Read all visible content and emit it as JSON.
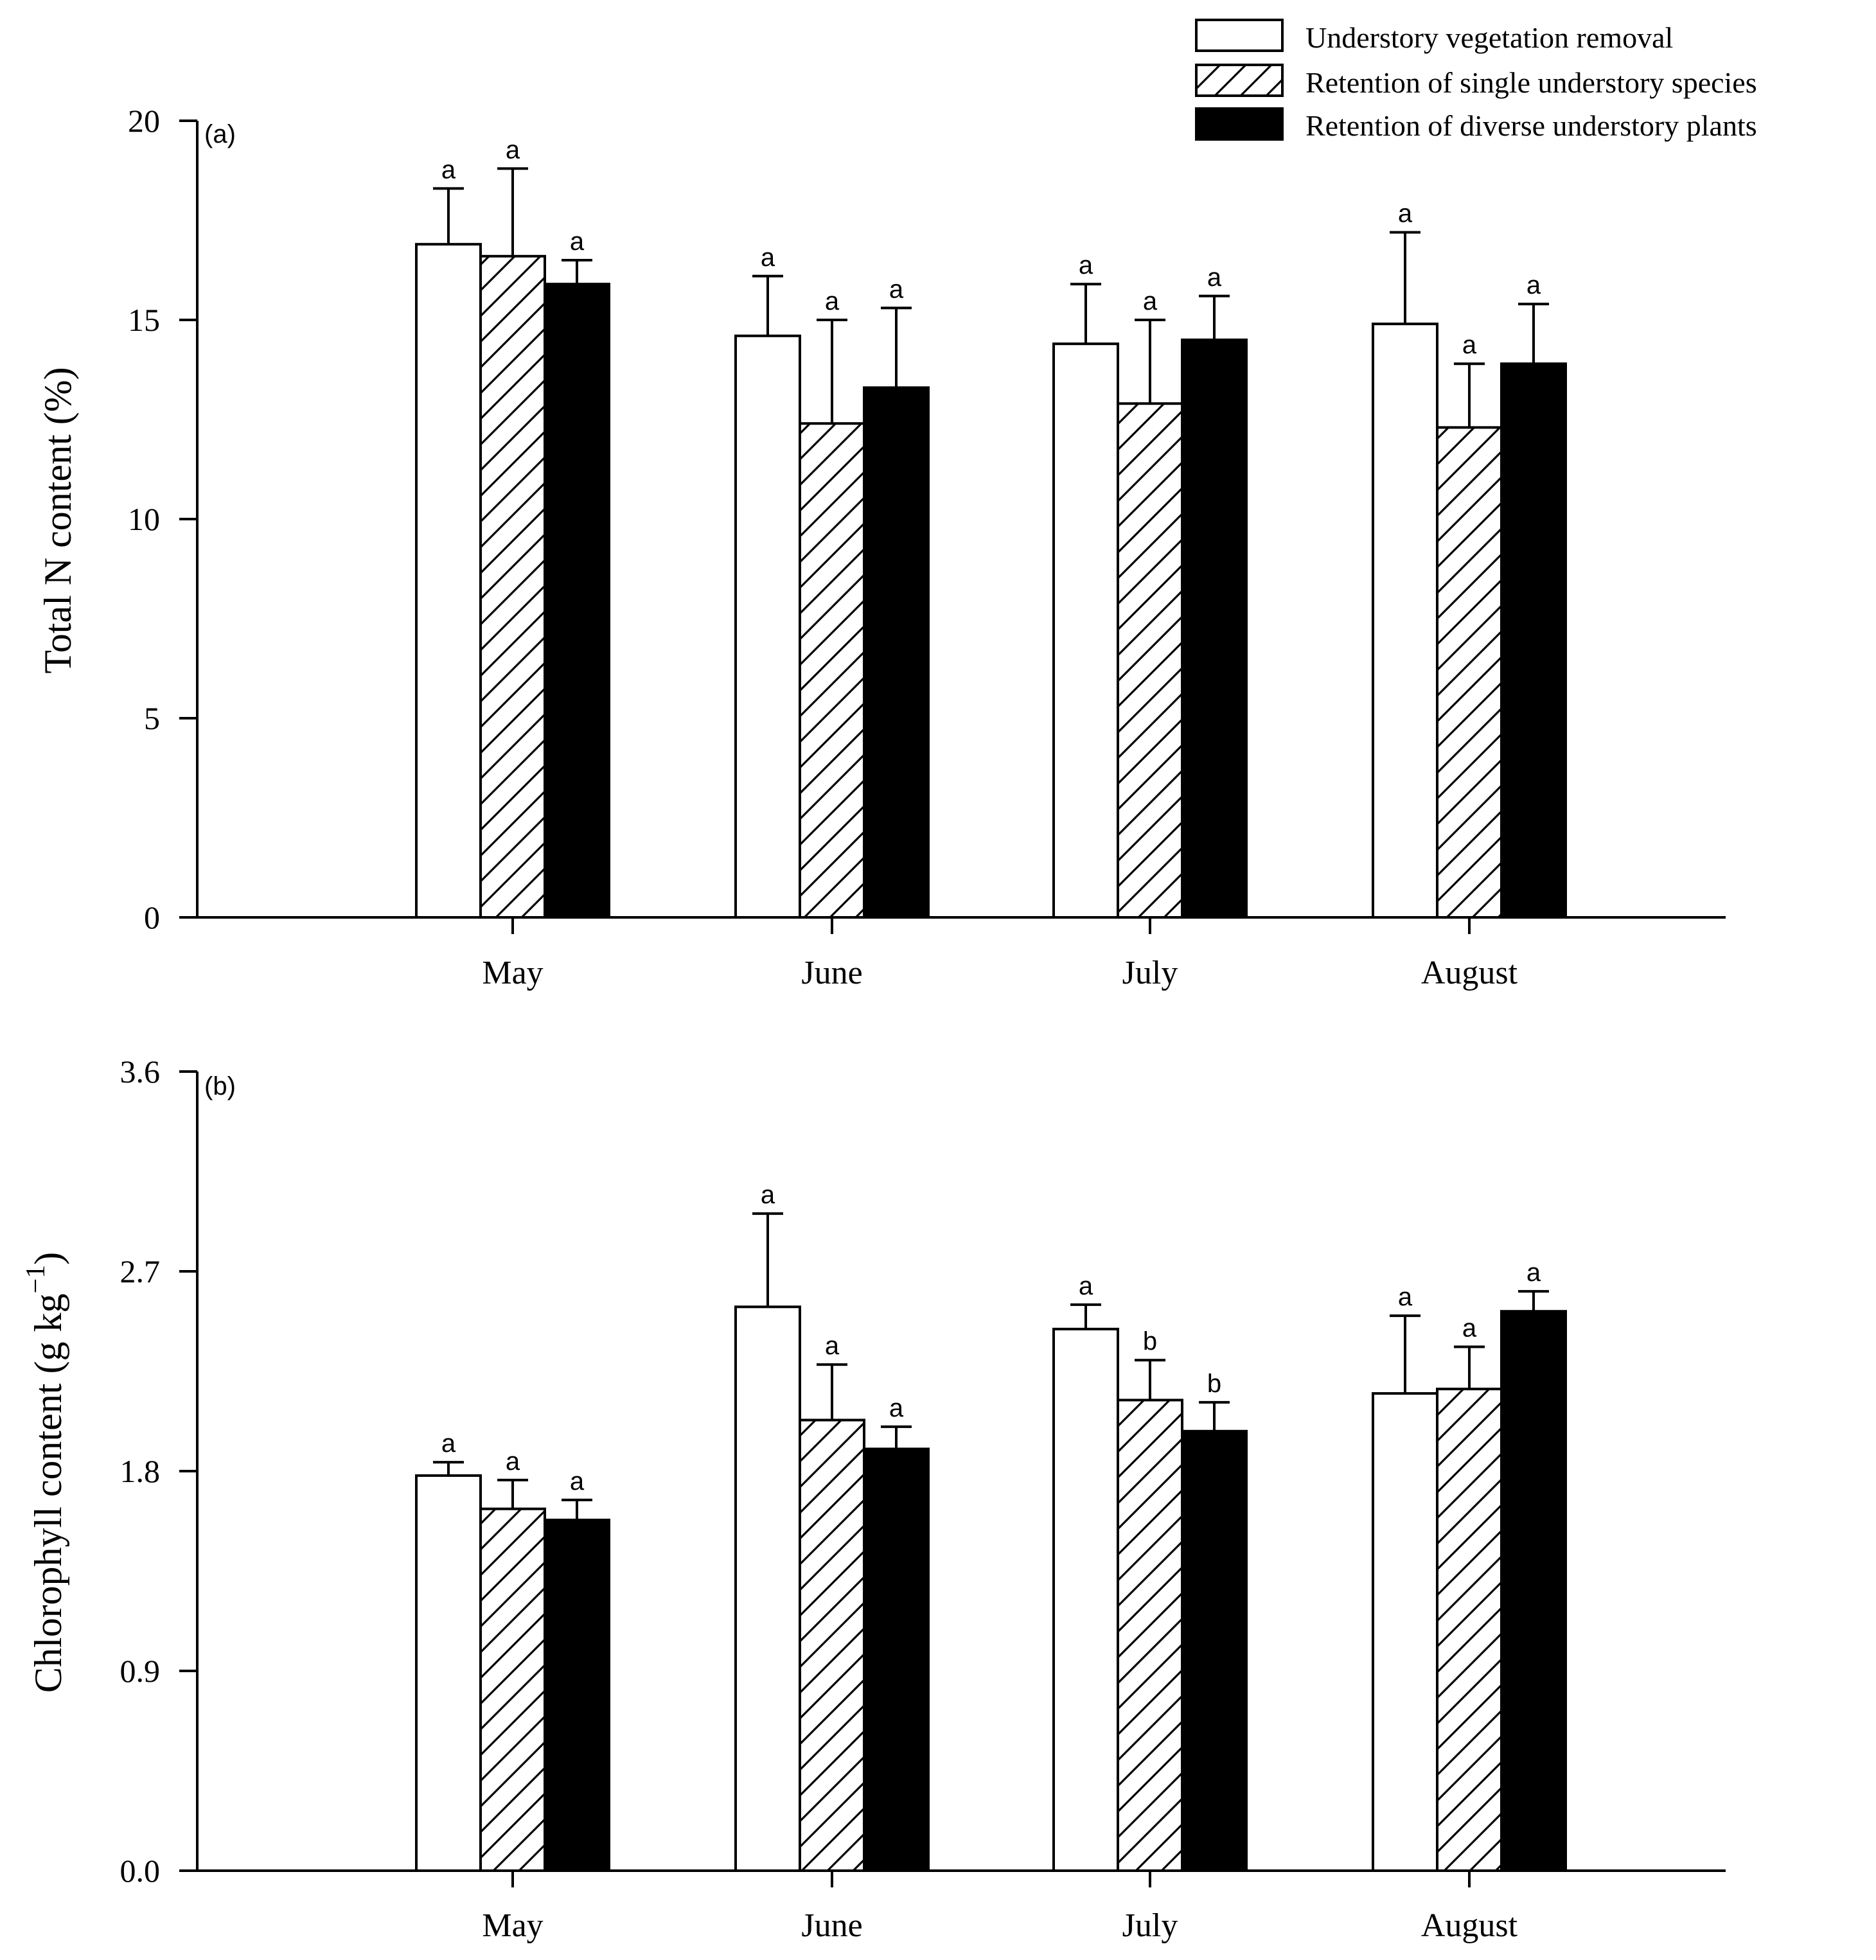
{
  "colors": {
    "stroke": "#000000",
    "white_fill": "#ffffff",
    "black_fill": "#000000"
  },
  "legend": {
    "placement": "top-right",
    "entries": [
      {
        "label": "Understory vegetation removal",
        "pattern": "open"
      },
      {
        "label": "Retention of single understory species",
        "pattern": "hatched"
      },
      {
        "label": "Retention of diverse understory plants",
        "pattern": "solid"
      }
    ]
  },
  "chart_data": [
    {
      "type": "bar",
      "panel": "(a)",
      "ylabel": "Total N content (%)",
      "ylim": [
        0,
        20
      ],
      "yticks": [
        "0",
        "5",
        "10",
        "15",
        "20"
      ],
      "categories": [
        "May",
        "June",
        "July",
        "August"
      ],
      "series": [
        {
          "name": "Understory vegetation removal",
          "pattern": "open",
          "values": [
            16.9,
            14.6,
            14.4,
            14.9
          ],
          "errors": [
            1.4,
            1.5,
            1.5,
            2.3
          ],
          "letters": [
            "a",
            "a",
            "a",
            "a"
          ]
        },
        {
          "name": "Retention of single understory species",
          "pattern": "hatched",
          "values": [
            16.6,
            12.4,
            12.9,
            12.3
          ],
          "errors": [
            2.2,
            2.6,
            2.1,
            1.6
          ],
          "letters": [
            "a",
            "a",
            "a",
            "a"
          ]
        },
        {
          "name": "Retention of diverse understory plants",
          "pattern": "solid",
          "values": [
            15.9,
            13.3,
            14.5,
            13.9
          ],
          "errors": [
            0.6,
            2.0,
            1.1,
            1.5
          ],
          "letters": [
            "a",
            "a",
            "a",
            "a"
          ]
        }
      ]
    },
    {
      "type": "bar",
      "panel": "(b)",
      "ylabel": "Chlorophyll content (g kg",
      "ylabel_superscript": "−1",
      "ylabel_close": ")",
      "ylim": [
        0,
        3.6
      ],
      "yticks": [
        "0.0",
        "0.9",
        "1.8",
        "2.7",
        "3.6"
      ],
      "categories": [
        "May",
        "June",
        "July",
        "August"
      ],
      "series": [
        {
          "name": "Understory vegetation removal",
          "pattern": "open",
          "values": [
            1.78,
            2.54,
            2.44,
            2.15
          ],
          "errors": [
            0.06,
            0.42,
            0.11,
            0.35
          ],
          "letters": [
            "a",
            "a",
            "a",
            "a"
          ]
        },
        {
          "name": "Retention of single understory species",
          "pattern": "hatched",
          "values": [
            1.63,
            2.03,
            2.12,
            2.17
          ],
          "errors": [
            0.13,
            0.25,
            0.18,
            0.19
          ],
          "letters": [
            "a",
            "a",
            "b",
            "a"
          ]
        },
        {
          "name": "Retention of diverse understory plants",
          "pattern": "solid",
          "values": [
            1.58,
            1.9,
            1.98,
            2.52
          ],
          "errors": [
            0.09,
            0.1,
            0.13,
            0.09
          ],
          "letters": [
            "a",
            "a",
            "b",
            "a"
          ]
        }
      ]
    }
  ]
}
